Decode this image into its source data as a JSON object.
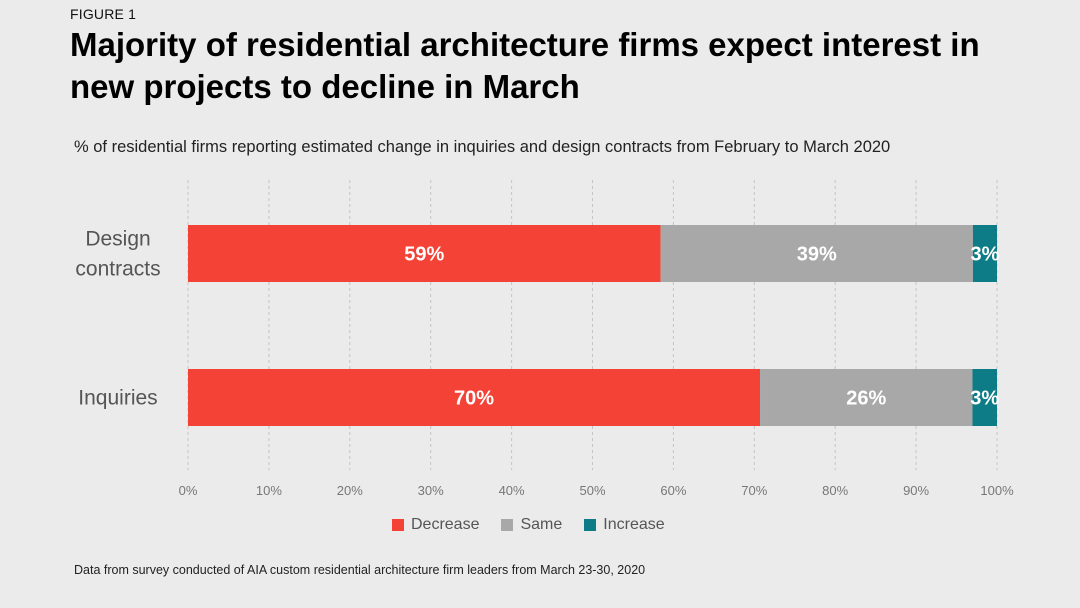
{
  "figure_label": "FIGURE 1",
  "title": "Majority of residential architecture firms expect interest in new projects to decline in March",
  "subtitle": "% of residential firms reporting estimated change in inquiries and design contracts from February to March 2020",
  "footnote": "Data from survey conducted of AIA custom residential architecture firm leaders from March 23-30, 2020",
  "chart_data": {
    "type": "bar",
    "orientation": "horizontal",
    "stacked": true,
    "categories": [
      "Design contracts",
      "Inquiries"
    ],
    "series": [
      {
        "name": "Decrease",
        "values": [
          59,
          70
        ],
        "labels": [
          "59%",
          "70%"
        ],
        "color": "#f44336"
      },
      {
        "name": "Same",
        "values": [
          39,
          26
        ],
        "labels": [
          "39%",
          "26%"
        ],
        "color": "#a8a8a8"
      },
      {
        "name": "Increase",
        "values": [
          3,
          3
        ],
        "labels": [
          "3%",
          "3%"
        ],
        "color": "#0e7c86"
      }
    ],
    "xlim": [
      0,
      100
    ],
    "xticks": [
      "0%",
      "10%",
      "20%",
      "30%",
      "40%",
      "50%",
      "60%",
      "70%",
      "80%",
      "90%",
      "100%"
    ],
    "grid": "vertical dashed",
    "legend_position": "bottom"
  }
}
